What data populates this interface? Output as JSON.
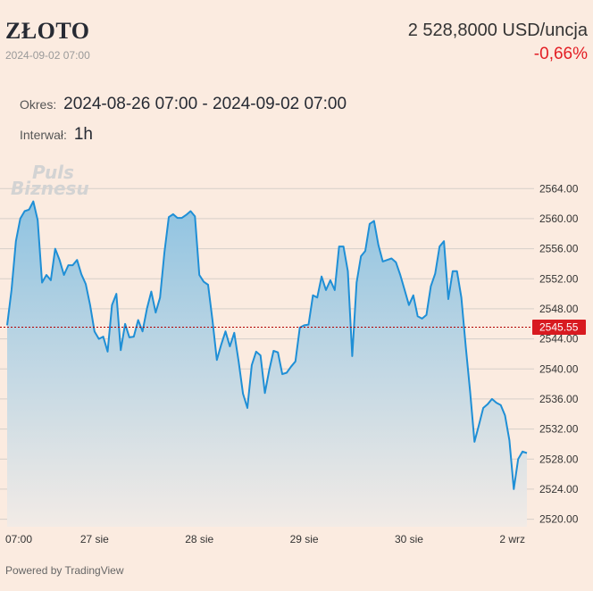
{
  "header": {
    "title": "ZŁOTO",
    "timestamp": "2024-09-02 07:00",
    "price": "2 528,8000 USD/uncja",
    "change": "-0,66%",
    "change_color": "#e31e24"
  },
  "period": {
    "label": "Okres:",
    "value": "2024-08-26 07:00 - 2024-09-02 07:00"
  },
  "interval": {
    "label": "Interwał:",
    "value": "1h"
  },
  "watermark": {
    "line1": "Puls",
    "line2": "Biznesu"
  },
  "footer": {
    "powered": "Powered by TradingView"
  },
  "colors": {
    "line": "#1f8fd6",
    "area_top": "#8fc3e1",
    "area_bottom": "#f2ebe6",
    "grid": "#d6cfc9",
    "ref_line": "#b30000",
    "ref_label_bg": "#d81a20"
  },
  "chart_data": {
    "type": "area",
    "ylim": [
      2519,
      2567
    ],
    "y_ticks": [
      2520,
      2524,
      2528,
      2532,
      2536,
      2540,
      2544,
      2548,
      2552,
      2556,
      2560,
      2564
    ],
    "y_tick_labels": [
      "2520.00",
      "2524.00",
      "2528.00",
      "2532.00",
      "2536.00",
      "2540.00",
      "2544.00",
      "2548.00",
      "2552.00",
      "2556.00",
      "2560.00",
      "2564.00"
    ],
    "x_ticks": [
      {
        "label": "07:00",
        "index": 0
      },
      {
        "label": "27 sie",
        "index": 20
      },
      {
        "label": "28 sie",
        "index": 44
      },
      {
        "label": "29 sie",
        "index": 68
      },
      {
        "label": "30 sie",
        "index": 92
      },
      {
        "label": "2 wrz",
        "index": 116
      }
    ],
    "reference_value": 2545.55,
    "reference_label": "2545.55",
    "values": [
      2545.8,
      2550.5,
      2557,
      2560,
      2561,
      2561.2,
      2562.3,
      2559.8,
      2551.5,
      2552.5,
      2551.8,
      2556,
      2554.5,
      2552.5,
      2553.8,
      2553.8,
      2554.5,
      2552.6,
      2551.3,
      2548.5,
      2545,
      2544,
      2544.3,
      2542.3,
      2548.5,
      2550,
      2542.5,
      2546,
      2544.2,
      2544.3,
      2546.5,
      2545,
      2548,
      2550.3,
      2547.5,
      2549.5,
      2555.5,
      2560.2,
      2560.6,
      2560.1,
      2560.1,
      2560.5,
      2561,
      2560.3,
      2552.5,
      2551.6,
      2551.2,
      2546.5,
      2541.2,
      2543.2,
      2545,
      2543,
      2544.8,
      2541,
      2536.7,
      2534.8,
      2540.5,
      2542.3,
      2541.8,
      2536.8,
      2539.8,
      2542.4,
      2542.2,
      2539.3,
      2539.5,
      2540.3,
      2541,
      2545.5,
      2545.8,
      2545.9,
      2549.8,
      2549.5,
      2552.3,
      2550.5,
      2551.8,
      2550.5,
      2556.3,
      2556.3,
      2553,
      2541.7,
      2551.5,
      2555,
      2555.7,
      2559.3,
      2559.7,
      2556.5,
      2554.3,
      2554.5,
      2554.7,
      2554.2,
      2552.5,
      2550.5,
      2548.5,
      2549.8,
      2547,
      2546.7,
      2547.2,
      2551,
      2552.7,
      2556.3,
      2557,
      2549.3,
      2553,
      2553,
      2549.5,
      2543,
      2537,
      2530.3,
      2532.5,
      2534.8,
      2535.3,
      2536,
      2535.5,
      2535.2,
      2533.8,
      2530.5,
      2524,
      2528,
      2529,
      2528.8
    ]
  }
}
